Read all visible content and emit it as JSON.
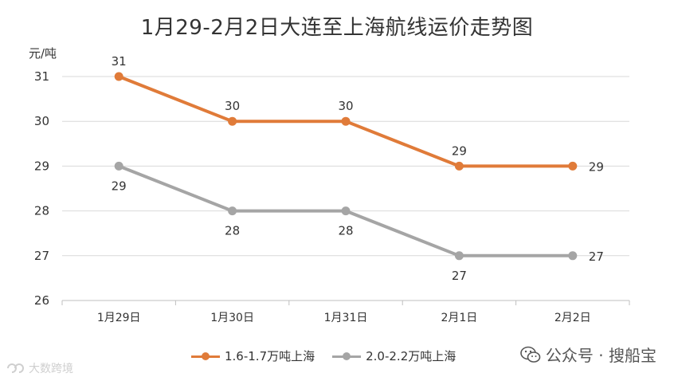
{
  "title": "1月29-2月2日大连至上海航线运价走势图",
  "chart_data": {
    "type": "line",
    "title": "1月29-2月2日大连至上海航线运价走势图",
    "ylabel": "元/吨",
    "xlabel": "",
    "categories": [
      "1月29日",
      "1月30日",
      "1月31日",
      "2月1日",
      "2月2日"
    ],
    "ylim": [
      26,
      31
    ],
    "yticks": [
      26,
      27,
      28,
      29,
      30,
      31
    ],
    "grid": true,
    "legend_position": "bottom",
    "series": [
      {
        "name": "1.6-1.7万吨上海",
        "values": [
          31,
          30,
          30,
          29,
          29
        ],
        "color": "#E07B39"
      },
      {
        "name": "2.0-2.2万吨上海",
        "values": [
          29,
          28,
          28,
          27,
          27
        ],
        "color": "#A5A5A5"
      }
    ]
  },
  "watermarks": {
    "right": "公众号 · 搜船宝",
    "left": "大数跨境"
  }
}
